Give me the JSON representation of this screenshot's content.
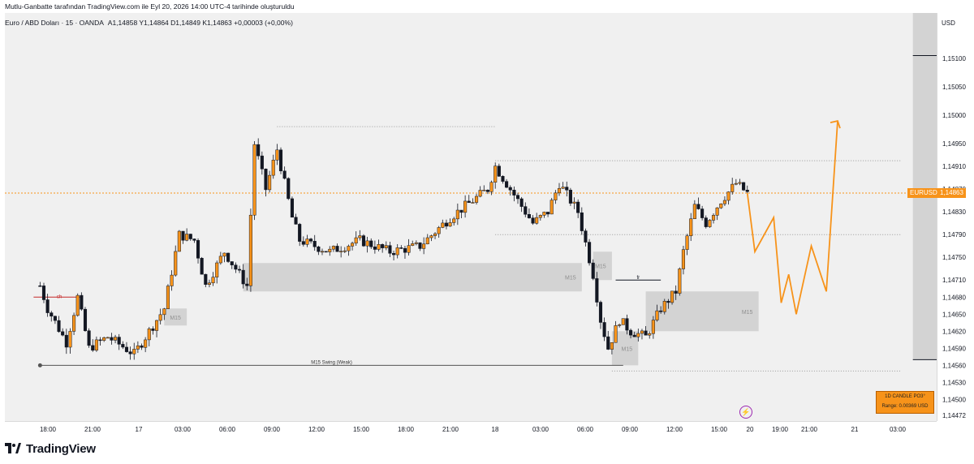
{
  "header": {
    "attribution": "Mutlu-Ganbatte tarafından TradingView.com ile Eyl 20, 2026 14:00 UTC-4 tarihinde oluşturuldu"
  },
  "legend": {
    "symbol": "Euro / ABD Doları · 15 · OANDA",
    "ohlc": "A1,14858  Y1,14864  D1,14849  K1,14863  +0,00003 (+0,00%)"
  },
  "axis": {
    "currency": "USD",
    "price_ticks": [
      "1,15100",
      "1,15050",
      "1,15000",
      "1,14950",
      "1,14910",
      "1,14870",
      "1,14830",
      "1,14790",
      "1,14750",
      "1,14710",
      "1,14680",
      "1,14650",
      "1,14620",
      "1,14590",
      "1,14560",
      "1,14530",
      "1,14500",
      "1,14472"
    ],
    "time_ticks": [
      "18:00",
      "21:00",
      "17",
      "03:00",
      "06:00",
      "09:00",
      "12:00",
      "15:00",
      "18:00",
      "21:00",
      "18",
      "03:00",
      "06:00",
      "09:00",
      "12:00",
      "15:00",
      "20",
      "19:00",
      "21:00",
      "21",
      "03:00"
    ]
  },
  "tags": {
    "current_price": "1,14863",
    "symbol_tag": "EURUSD"
  },
  "annotations": {
    "zone_label_a": "M15",
    "zone_label_b": "M15",
    "zone_label_c": "M15",
    "zone_label_d": "M15",
    "zone_label_e": "M15",
    "swing_label": "M15 Swing (Weak)",
    "choch_label": "ch",
    "fr_label": "fr",
    "fib_top": "0,",
    "fib_bottom": "0"
  },
  "infobox": {
    "title": "1D CANDLE PO3°",
    "range": "Range: 0.00369 USD"
  },
  "brand": {
    "name": "TradingView"
  },
  "colors": {
    "bull": "#f7931a",
    "bear": "#131722",
    "projection": "#f7931a",
    "zone": "#d3d3d3",
    "accent": "#f7931a"
  },
  "chart_data": {
    "type": "candlestick",
    "symbol": "EURUSD",
    "timeframe": "15",
    "ylim": [
      1.14472,
      1.15135
    ],
    "anchors": [
      [
        "16 17:45",
        1.147
      ],
      [
        "16 18:15",
        1.1466
      ],
      [
        "16 19:30",
        1.146
      ],
      [
        "16 20:15",
        1.1468
      ],
      [
        "16 21:00",
        1.1459
      ],
      [
        "16 22:15",
        1.1461
      ],
      [
        "17 00:00",
        1.1458
      ],
      [
        "17 01:30",
        1.1464
      ],
      [
        "17 02:00",
        1.1466
      ],
      [
        "17 03:00",
        1.1479
      ],
      [
        "17 04:00",
        1.1478
      ],
      [
        "17 04:45",
        1.147
      ],
      [
        "17 06:00",
        1.1476
      ],
      [
        "17 07:30",
        1.147
      ],
      [
        "17 08:00",
        1.1495
      ],
      [
        "17 08:45",
        1.1487
      ],
      [
        "17 09:30",
        1.1494
      ],
      [
        "17 10:30",
        1.1482
      ],
      [
        "17 11:00",
        1.1478
      ],
      [
        "17 13:00",
        1.1476
      ],
      [
        "17 15:00",
        1.1478
      ],
      [
        "17 17:00",
        1.1476
      ],
      [
        "17 19:00",
        1.1477
      ],
      [
        "17 21:00",
        1.1482
      ],
      [
        "17 23:30",
        1.1487
      ],
      [
        "18 00:00",
        1.1491
      ],
      [
        "18 01:30",
        1.1485
      ],
      [
        "18 02:30",
        1.1481
      ],
      [
        "18 03:30",
        1.1483
      ],
      [
        "18 04:15",
        1.1488
      ],
      [
        "18 05:30",
        1.1483
      ],
      [
        "18 06:30",
        1.1472
      ],
      [
        "18 07:00",
        1.1464
      ],
      [
        "18 07:30",
        1.1459
      ],
      [
        "18 08:15",
        1.1464
      ],
      [
        "18 09:00",
        1.1462
      ],
      [
        "18 10:00",
        1.1461
      ],
      [
        "18 11:00",
        1.1466
      ],
      [
        "18 12:00",
        1.1469
      ],
      [
        "18 12:30",
        1.1476
      ],
      [
        "18 13:15",
        1.1484
      ],
      [
        "18 14:00",
        1.1481
      ],
      [
        "18 15:00",
        1.1485
      ],
      [
        "18 16:00",
        1.1488
      ],
      [
        "18 16:45",
        1.14863
      ]
    ],
    "projection": [
      [
        "18 16:45",
        1.14863
      ],
      [
        "18 17:15",
        1.1476
      ],
      [
        "18 18:30",
        1.1482
      ],
      [
        "18 19:00",
        1.1467
      ],
      [
        "18 19:30",
        1.1472
      ],
      [
        "18 20:00",
        1.1465
      ],
      [
        "18 21:00",
        1.1477
      ],
      [
        "18 22:00",
        1.1469
      ],
      [
        "18 22:45",
        1.1499
      ]
    ],
    "zones": [
      {
        "label": "M15",
        "from": "17 02:00",
        "to": "17 03:30",
        "low": 1.1463,
        "high": 1.1466
      },
      {
        "label": "M15",
        "from": "17 07:15",
        "to": "18 05:45",
        "low": 1.1469,
        "high": 1.1474
      },
      {
        "label": "M15",
        "from": "18 06:30",
        "to": "18 07:45",
        "low": 1.1471,
        "high": 1.1476
      },
      {
        "label": "M15",
        "from": "18 07:45",
        "to": "18 09:30",
        "low": 1.1456,
        "high": 1.1462
      },
      {
        "label": "M15",
        "from": "18 10:00",
        "to": "18 17:30",
        "low": 1.1462,
        "high": 1.1469
      }
    ],
    "levels": [
      {
        "label": "M15 Swing (Weak)",
        "price": 1.1456,
        "from": "16 17:45",
        "to": "18 08:30"
      },
      {
        "label": "",
        "price": 1.1498,
        "from": "17 09:30",
        "to": "18 00:00",
        "style": "dotted"
      },
      {
        "label": "",
        "price": 1.1492,
        "from": "18 00:00",
        "to": "19 03:00",
        "style": "dotted"
      },
      {
        "label": "",
        "price": 1.1479,
        "from": "18 00:00",
        "to": "19 03:00",
        "style": "dotted"
      },
      {
        "label": "",
        "price": 1.1455,
        "from": "18 07:45",
        "to": "19 03:00",
        "style": "dotted"
      }
    ],
    "range_box": {
      "from": "19 03:45",
      "to": "19 08:00",
      "high": 1.15105,
      "low": 1.1457
    },
    "price_ticks": [
      1.151,
      1.1505,
      1.15,
      1.1495,
      1.1491,
      1.1487,
      1.1483,
      1.1479,
      1.1475,
      1.1471,
      1.1468,
      1.1465,
      1.1462,
      1.1459,
      1.1456,
      1.1453,
      1.145,
      1.14472
    ],
    "time_ticks": [
      "18:00",
      "21:00",
      "17",
      "03:00",
      "06:00",
      "09:00",
      "12:00",
      "15:00",
      "18:00",
      "21:00",
      "18",
      "03:00",
      "06:00",
      "09:00",
      "12:00",
      "15:00",
      "20",
      "19:00",
      "21:00",
      "21",
      "03:00"
    ],
    "current_price": 1.14863
  }
}
